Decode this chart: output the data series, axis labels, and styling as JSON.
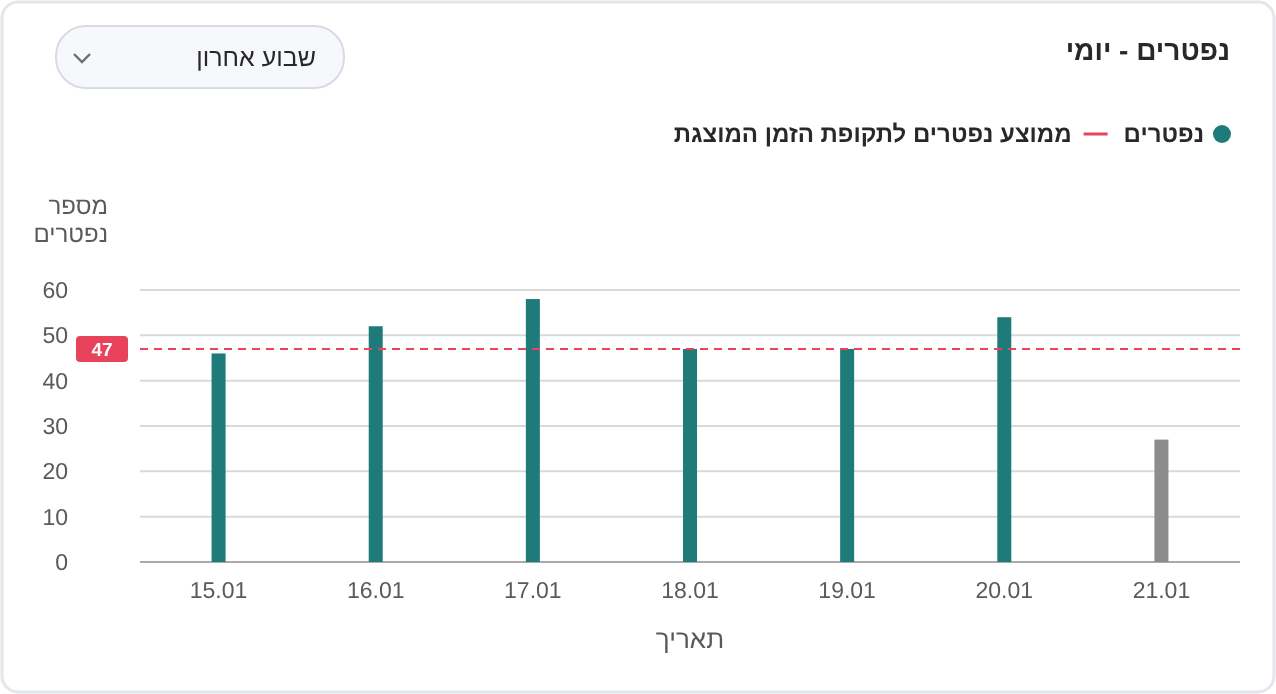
{
  "chart_data": {
    "type": "bar",
    "title": "נפטרים - יומי",
    "ylabel": "מספר נפטרים",
    "xlabel": "תאריך",
    "categories": [
      "15.01",
      "16.01",
      "17.01",
      "18.01",
      "19.01",
      "20.01",
      "21.01"
    ],
    "series": [
      {
        "name": "נפטרים",
        "values": [
          46,
          52,
          58,
          47,
          47,
          54,
          27
        ],
        "colors": [
          "#1e7b79",
          "#1e7b79",
          "#1e7b79",
          "#1e7b79",
          "#1e7b79",
          "#1e7b79",
          "#8c8c8c"
        ]
      }
    ],
    "ylim": [
      0,
      60
    ],
    "yticks": [
      0,
      10,
      20,
      30,
      40,
      50,
      60
    ],
    "grid": "y",
    "legend": "top right",
    "ref_lines": [
      {
        "axis": "y",
        "value": 47,
        "label": "ממוצע נפטרים לתקופת הזמן המוצגת",
        "color": "#e8435a",
        "line_style": "dashed"
      }
    ],
    "annotations": [
      "שבוע אחרון",
      "47"
    ]
  }
}
